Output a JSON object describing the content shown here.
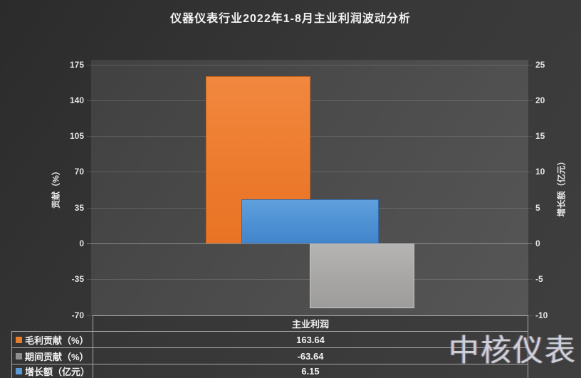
{
  "title": "仪器仪表行业2022年1-8月主业利润波动分析",
  "watermark": "中核仪表",
  "chart_data": {
    "type": "bar",
    "title": "仪器仪表行业2022年1-8月主业利润波动分析",
    "categories": [
      "主业利润"
    ],
    "series": [
      {
        "name": "毛利贡献（%）",
        "axis": "left",
        "color": "#ED7D31",
        "values": [
          163.64
        ]
      },
      {
        "name": "期间贡献（%）",
        "axis": "left",
        "color": "#A5A5A5",
        "values": [
          -63.64
        ]
      },
      {
        "name": "增长额（亿元）",
        "axis": "right",
        "color": "#5B9BD5",
        "values": [
          6.15
        ]
      }
    ],
    "left_axis": {
      "label": "贡献（%）",
      "ticks": [
        175,
        140,
        105,
        70,
        35,
        0,
        -35,
        -70
      ],
      "range": [
        -70,
        175
      ]
    },
    "right_axis": {
      "label": "增长额（亿元）",
      "ticks": [
        25,
        20,
        15,
        10,
        5,
        0,
        -5,
        -10
      ],
      "range": [
        -10,
        25
      ]
    },
    "grid": true,
    "legend_position": "table-bottom"
  },
  "table": {
    "category_header": "主业利润",
    "rows": [
      {
        "swatch": "#E77E2E",
        "label": "毛利贡献（%）",
        "value": "163.64"
      },
      {
        "swatch": "#8F8F8F",
        "label": "期间贡献（%）",
        "value": "-63.64"
      },
      {
        "swatch": "#5B9BD5",
        "label": "增长额（亿元）",
        "value": "6.15"
      }
    ]
  }
}
